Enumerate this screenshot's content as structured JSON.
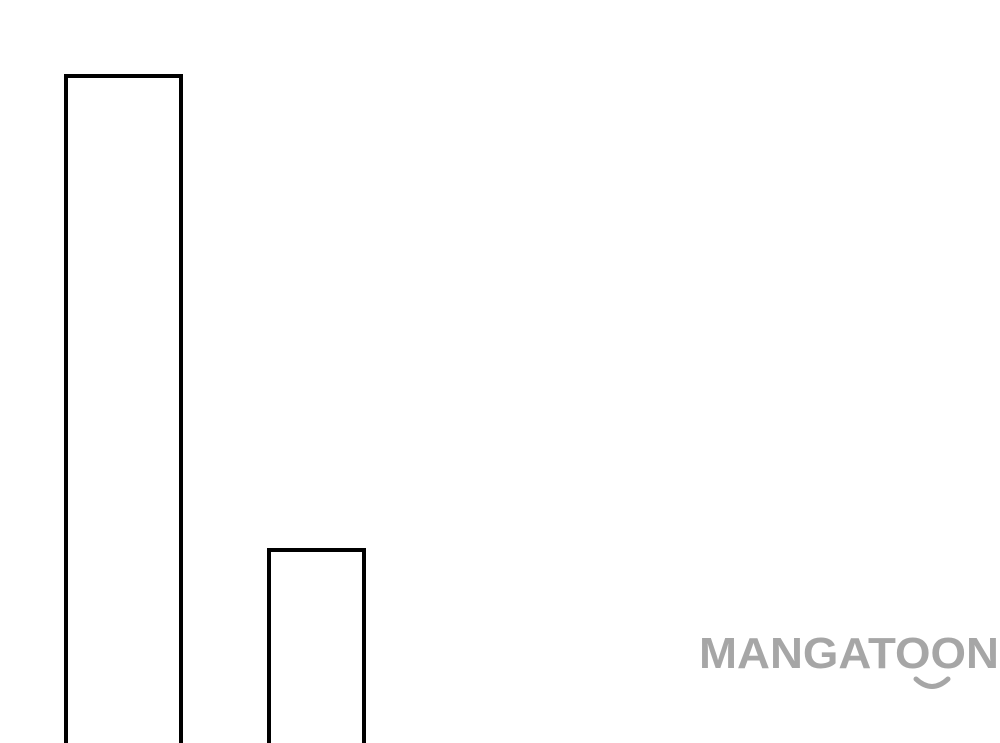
{
  "watermark": "MANGATOON"
}
